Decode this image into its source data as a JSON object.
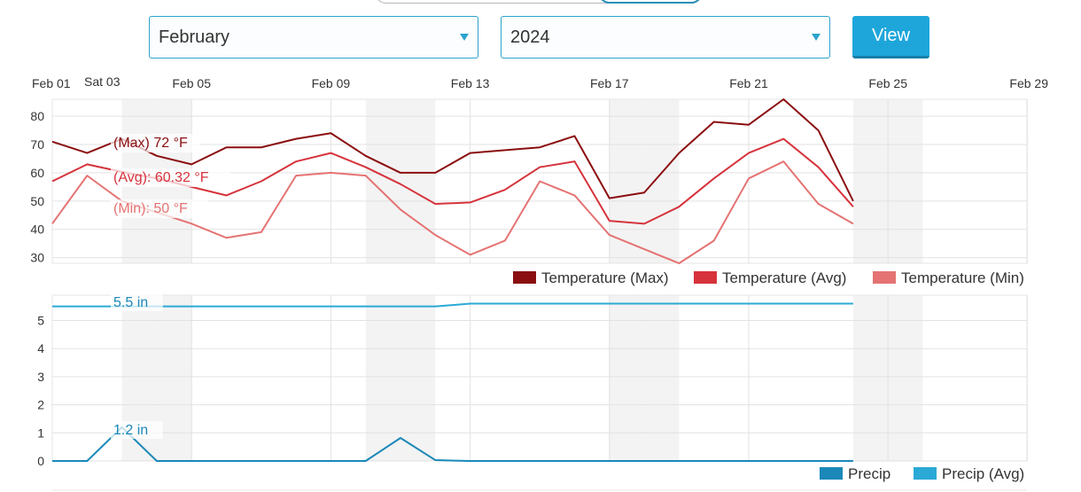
{
  "controls": {
    "month": "February",
    "year": "2024",
    "view_label": "View"
  },
  "hover_date": "Sat 03",
  "colors": {
    "max": "#8b0e10",
    "avg": "#d6333c",
    "min": "#e57373",
    "precip": "#1a88b8",
    "precip_avg": "#2aa9d6"
  },
  "chart_data": [
    {
      "type": "line",
      "x": [
        "Feb 01",
        "Feb 02",
        "Feb 03",
        "Feb 04",
        "Feb 05",
        "Feb 06",
        "Feb 07",
        "Feb 08",
        "Feb 09",
        "Feb 10",
        "Feb 11",
        "Feb 12",
        "Feb 13",
        "Feb 14",
        "Feb 15",
        "Feb 16",
        "Feb 17",
        "Feb 18",
        "Feb 19",
        "Feb 20",
        "Feb 21",
        "Feb 22",
        "Feb 23",
        "Feb 24"
      ],
      "x_ticks": [
        "Feb 01",
        "Feb 05",
        "Feb 09",
        "Feb 13",
        "Feb 17",
        "Feb 21",
        "Feb 25",
        "Feb 29"
      ],
      "y_ticks": [
        30,
        40,
        50,
        60,
        70,
        80
      ],
      "ylim": [
        28,
        86
      ],
      "grid": true,
      "legend_position": "bottom-right",
      "series": [
        {
          "name": "Temperature (Max)",
          "values": [
            71,
            67,
            72,
            66,
            63,
            69,
            69,
            72,
            74,
            66,
            60,
            60,
            67,
            68,
            69,
            73,
            51,
            53,
            67,
            78,
            77,
            86,
            75,
            50
          ]
        },
        {
          "name": "Temperature (Avg)",
          "values": [
            57,
            63,
            60.32,
            58,
            55,
            52,
            57,
            64,
            67,
            62,
            56,
            49,
            49.5,
            54,
            62,
            64,
            43,
            42,
            48,
            58,
            67,
            72,
            62,
            48
          ]
        },
        {
          "name": "Temperature (Min)",
          "values": [
            42,
            59,
            50,
            46,
            42,
            37,
            39,
            59,
            60,
            59,
            47,
            38,
            31,
            36,
            57,
            52,
            38,
            33,
            28,
            36,
            58,
            64,
            49,
            42
          ]
        }
      ],
      "tooltip": [
        "(Max) 72 °F",
        "(Avg): 60.32 °F",
        "(Min): 50 °F"
      ]
    },
    {
      "type": "line",
      "x": [
        "Feb 01",
        "Feb 02",
        "Feb 03",
        "Feb 04",
        "Feb 05",
        "Feb 06",
        "Feb 07",
        "Feb 08",
        "Feb 09",
        "Feb 10",
        "Feb 11",
        "Feb 12",
        "Feb 13",
        "Feb 14",
        "Feb 15",
        "Feb 16",
        "Feb 17",
        "Feb 18",
        "Feb 19",
        "Feb 20",
        "Feb 21",
        "Feb 22",
        "Feb 23",
        "Feb 24"
      ],
      "y_ticks": [
        0,
        1,
        2,
        3,
        4,
        5
      ],
      "ylim": [
        0,
        5.9
      ],
      "grid": true,
      "legend_position": "bottom-right",
      "series": [
        {
          "name": "Precip",
          "values": [
            0,
            0,
            1.2,
            0,
            0,
            0,
            0,
            0,
            0,
            0,
            0.82,
            0.03,
            0,
            0,
            0,
            0,
            0,
            0,
            0,
            0,
            0,
            0,
            0,
            0
          ]
        },
        {
          "name": "Precip (Avg)",
          "values": [
            5.5,
            5.5,
            5.5,
            5.5,
            5.5,
            5.5,
            5.5,
            5.5,
            5.5,
            5.5,
            5.5,
            5.5,
            5.6,
            5.6,
            5.6,
            5.6,
            5.6,
            5.6,
            5.6,
            5.6,
            5.6,
            5.6,
            5.6,
            5.6
          ]
        }
      ],
      "tooltip": [
        "5.5 in",
        "1.2 in"
      ]
    }
  ]
}
